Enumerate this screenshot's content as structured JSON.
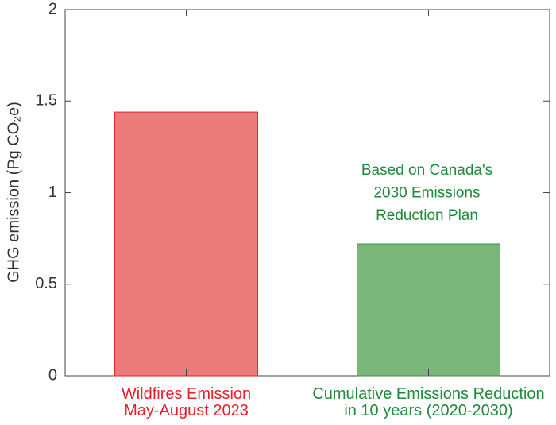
{
  "chart_data": {
    "type": "bar",
    "ylabel": "GHG emission (Pg CO₂e)",
    "categories": [
      "Wildfires Emission\nMay-August 2023",
      "Cumulative Emissions Reduction\nin 10 years (2020-2030)"
    ],
    "values": [
      1.44,
      0.72
    ],
    "colors": [
      "#ec7b7b",
      "#7bb77b"
    ],
    "edgecolors": [
      "#e0262a",
      "#3d8f45"
    ],
    "label_colors": [
      "#e8202a",
      "#1f8a3a"
    ],
    "annotation": {
      "text": "Based on Canada's\n2030 Emissions\nReduction Plan",
      "color": "#1f8a3a"
    },
    "ylim": [
      0,
      2
    ],
    "yticks": [
      0,
      0.5,
      1,
      1.5,
      2
    ],
    "grid": false
  }
}
